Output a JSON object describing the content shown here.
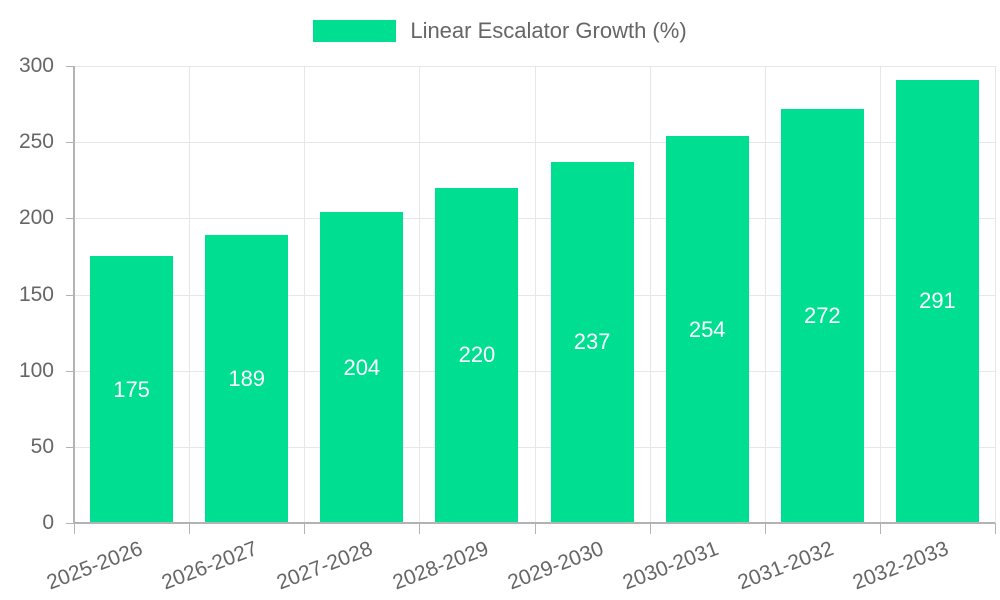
{
  "legend": {
    "label": "Linear Escalator Growth (%)"
  },
  "colors": {
    "bar": "#00DE92",
    "axis_text": "#666666",
    "grid": "#e7e7e7",
    "axis_border": "#b3b3b3",
    "value_label": "#ffffff",
    "background": "#ffffff"
  },
  "chart_data": {
    "type": "bar",
    "title": "",
    "legend": "Linear Escalator Growth (%)",
    "legend_position": "top",
    "categories": [
      "2025-2026",
      "2026-2027",
      "2027-2028",
      "2028-2029",
      "2029-2030",
      "2030-2031",
      "2031-2032",
      "2032-2033"
    ],
    "values": [
      175,
      189,
      204,
      220,
      237,
      254,
      272,
      291
    ],
    "xlabel": "",
    "ylabel": "",
    "ylim": [
      0,
      300
    ],
    "yticks": [
      0,
      50,
      100,
      150,
      200,
      250,
      300
    ],
    "grid": true,
    "x_label_rotation_deg": -21,
    "bar_color": "#00DE92"
  }
}
